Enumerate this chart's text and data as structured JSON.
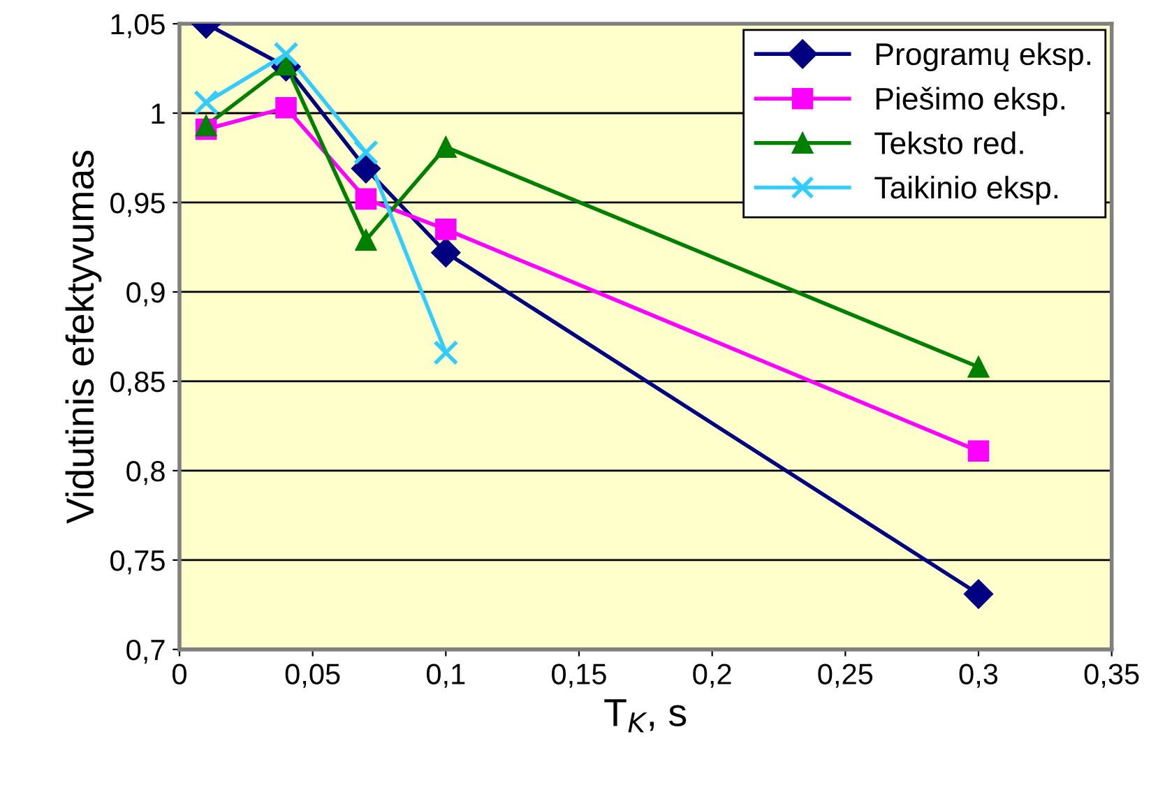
{
  "chart_data": {
    "type": "line",
    "xlabel": "T$_{K}$, s",
    "ylabel": "Vidutinis efektyvumas",
    "x": [
      0.01,
      0.04,
      0.07,
      0.1,
      0.3
    ],
    "series": [
      {
        "name": "Programų eksp.",
        "color": "#000080",
        "marker": "diamond",
        "values": [
          1.05,
          1.026,
          0.969,
          0.922,
          0.731
        ]
      },
      {
        "name": "Piešimo eksp.",
        "color": "#ff00ff",
        "marker": "square",
        "values": [
          0.991,
          1.003,
          0.952,
          0.935,
          0.811
        ]
      },
      {
        "name": "Teksto red.",
        "color": "#008000",
        "marker": "triangle",
        "values": [
          0.993,
          1.027,
          0.929,
          0.981,
          0.858
        ]
      },
      {
        "name": "Taikinio eksp.",
        "color": "#33ccff",
        "marker": "cross",
        "values": [
          1.006,
          1.033,
          0.978,
          0.866,
          null
        ]
      }
    ],
    "xlim": [
      0,
      0.35
    ],
    "ylim": [
      0.7,
      1.05
    ],
    "xticks": [
      0,
      {
        "value": 0.05,
        "label": "0,05"
      },
      {
        "value": 0.1,
        "label": "0,1"
      },
      {
        "value": 0.15,
        "label": "0,15"
      },
      {
        "value": 0.2,
        "label": "0,2"
      },
      {
        "value": 0.25,
        "label": "0,25"
      },
      {
        "value": 0.3,
        "label": "0,3"
      },
      {
        "value": 0.35,
        "label": "0,35"
      }
    ],
    "yticks": [
      {
        "value": 0.7,
        "label": "0,7"
      },
      {
        "value": 0.75,
        "label": "0,75"
      },
      {
        "value": 0.8,
        "label": "0,8"
      },
      {
        "value": 0.85,
        "label": "0,85"
      },
      {
        "value": 0.9,
        "label": "0,9"
      },
      {
        "value": 0.95,
        "label": "0,95"
      },
      1,
      {
        "value": 1.05,
        "label": "1,05"
      }
    ],
    "grid": "y",
    "legend": "top right",
    "line_style": "solid"
  }
}
